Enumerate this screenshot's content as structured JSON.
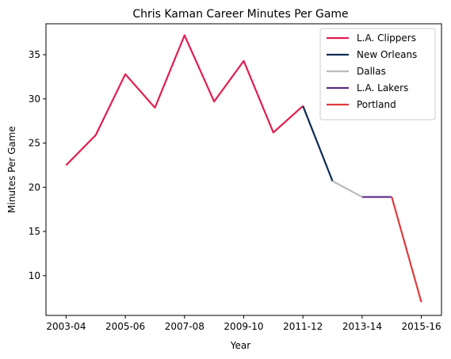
{
  "chart_data": {
    "type": "line",
    "title": "Chris Kaman Career Minutes Per Game",
    "xlabel": "Year",
    "ylabel": "Minutes Per Game",
    "x_tick_labels": [
      "2003-04",
      "2005-06",
      "2007-08",
      "2009-10",
      "2011-12",
      "2013-14",
      "2015-16"
    ],
    "y_ticks": [
      10,
      15,
      20,
      25,
      30,
      35
    ],
    "ylim": [
      5.5,
      38.5
    ],
    "grid": false,
    "legend_position": "top-right",
    "series": [
      {
        "name": "L.A. Clippers",
        "color": "#e31d4f",
        "points": [
          {
            "x": "2003-04",
            "y": 22.5
          },
          {
            "x": "2004-05",
            "y": 25.9
          },
          {
            "x": "2005-06",
            "y": 32.8
          },
          {
            "x": "2006-07",
            "y": 29.0
          },
          {
            "x": "2007-08",
            "y": 37.2
          },
          {
            "x": "2008-09",
            "y": 29.7
          },
          {
            "x": "2009-10",
            "y": 34.3
          },
          {
            "x": "2010-11",
            "y": 26.2
          },
          {
            "x": "2011-12",
            "y": 29.2
          }
        ]
      },
      {
        "name": "New Orleans",
        "color": "#0c2c56",
        "points": [
          {
            "x": "2011-12",
            "y": 29.2
          },
          {
            "x": "2012-13",
            "y": 20.7
          }
        ]
      },
      {
        "name": "Dallas",
        "color": "#bbbbbb",
        "points": [
          {
            "x": "2012-13",
            "y": 20.7
          },
          {
            "x": "2013-14",
            "y": 18.9
          }
        ]
      },
      {
        "name": "L.A. Lakers",
        "color": "#5b2a86",
        "points": [
          {
            "x": "2013-14",
            "y": 18.9
          },
          {
            "x": "2014-15",
            "y": 18.9
          }
        ]
      },
      {
        "name": "Portland",
        "color": "#e03a3e",
        "points": [
          {
            "x": "2014-15",
            "y": 18.9
          },
          {
            "x": "2015-16",
            "y": 7.0
          }
        ]
      }
    ]
  }
}
